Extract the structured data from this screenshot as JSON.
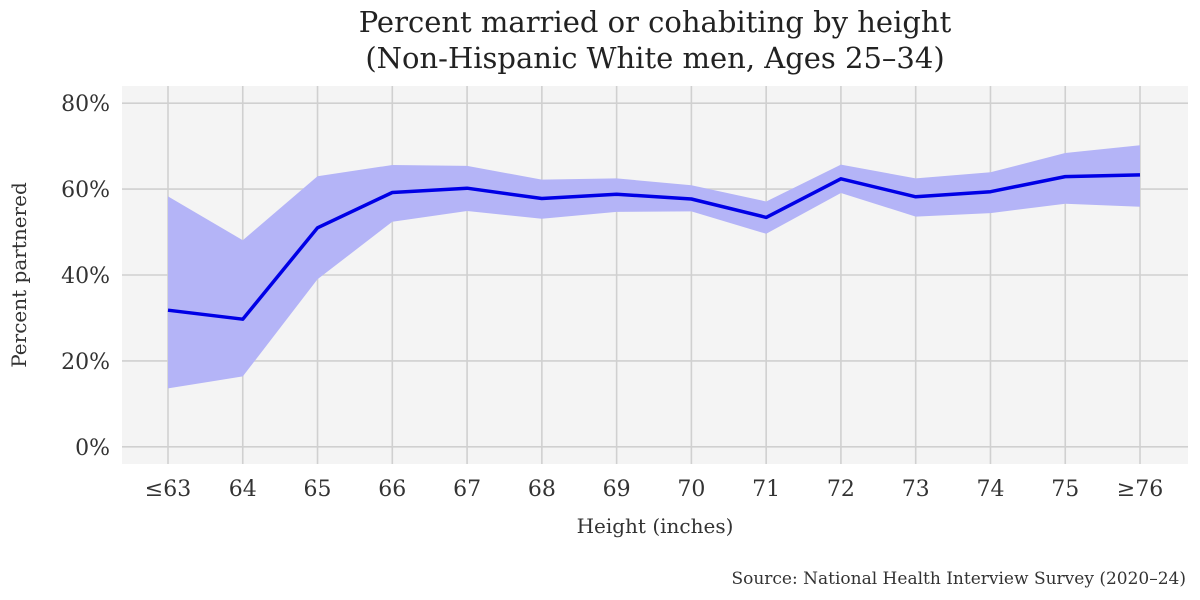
{
  "chart_data": {
    "type": "line",
    "title": "Percent married or cohabiting by height",
    "subtitle": "(Non-Hispanic White men, Ages 25–34)",
    "xlabel": "Height (inches)",
    "ylabel": "Percent partnered",
    "source": "Source: National Health Interview Survey (2020–24)",
    "categories": [
      "≤63",
      "64",
      "65",
      "66",
      "67",
      "68",
      "69",
      "70",
      "71",
      "72",
      "73",
      "74",
      "75",
      "≥76"
    ],
    "yticks": [
      "0%",
      "20%",
      "40%",
      "60%",
      "80%"
    ],
    "ytick_values": [
      0,
      20,
      40,
      60,
      80
    ],
    "ylim": [
      -4,
      84
    ],
    "grid": true,
    "series": [
      {
        "values": [
          31.8,
          29.7,
          51.0,
          59.2,
          60.2,
          57.8,
          58.8,
          57.7,
          53.4,
          62.4,
          58.2,
          59.4,
          62.9,
          63.3
        ],
        "ci_lower": [
          13.6,
          16.4,
          39.0,
          52.4,
          54.9,
          53.1,
          54.7,
          54.8,
          49.6,
          59.1,
          53.6,
          54.4,
          56.6,
          55.9
        ],
        "ci_upper": [
          58.3,
          48.1,
          63.0,
          65.6,
          65.4,
          62.2,
          62.5,
          60.9,
          57.1,
          65.7,
          62.5,
          63.9,
          68.4,
          70.2
        ]
      }
    ],
    "colors": {
      "line": "#0000e6",
      "band": "#b4b4f7",
      "panel": "#f4f4f4",
      "grid": "#d0d0d0"
    }
  }
}
